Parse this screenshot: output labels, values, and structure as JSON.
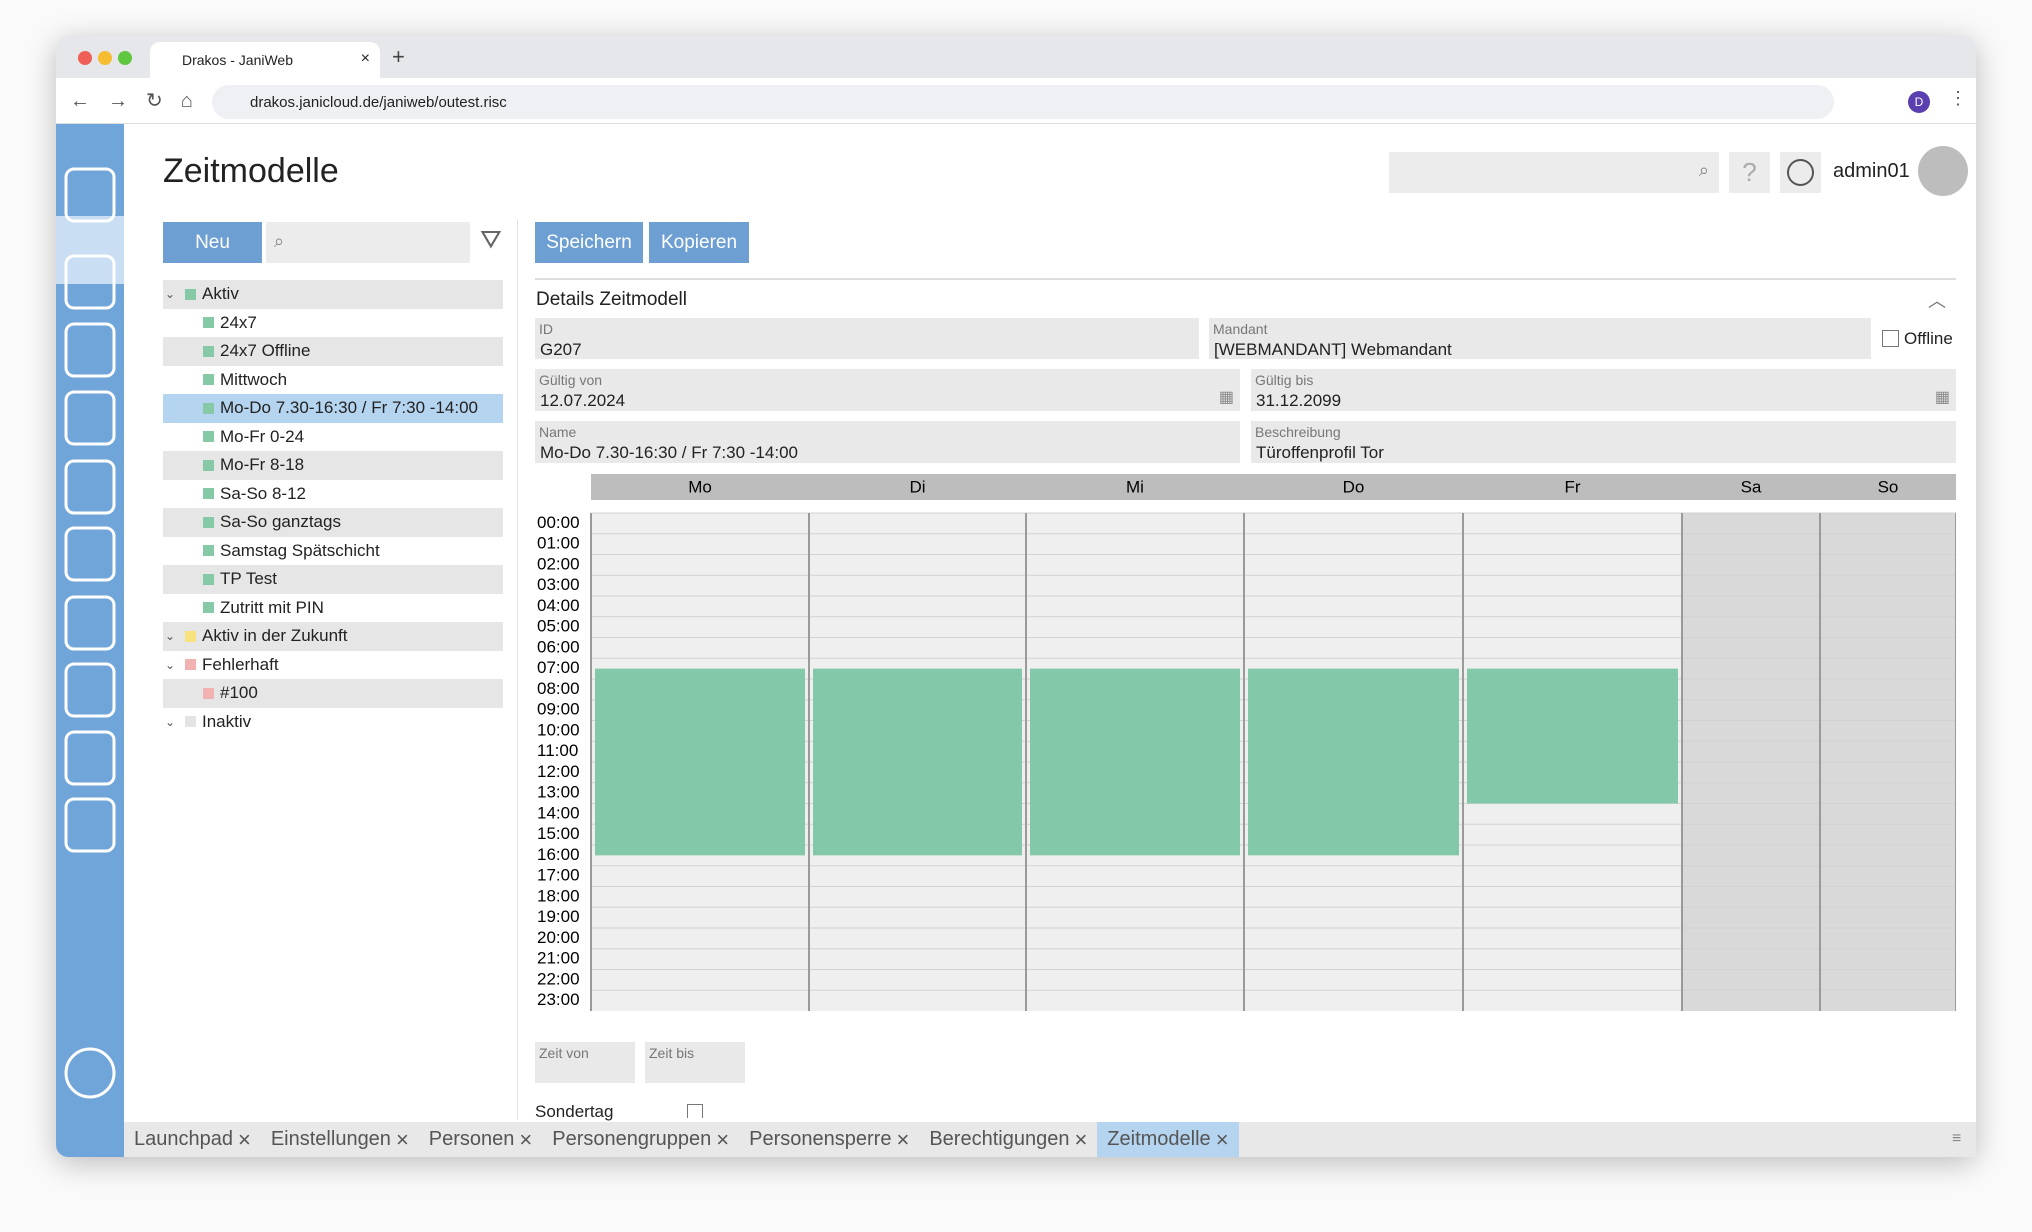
{
  "browser": {
    "tab_title": "Drakos - JaniWeb",
    "url": "drakos.janicloud.de/janiweb/outest.risc",
    "profile": "D"
  },
  "header": {
    "title": "Zeitmodelle",
    "user": "admin01"
  },
  "toolbar": {
    "new": "Neu",
    "save": "Speichern",
    "copy": "Kopieren"
  },
  "tree": [
    {
      "label": "Aktiv",
      "color": "#86c9a7",
      "items": [
        "24x7",
        "24x7 Offline",
        "Mittwoch",
        "Mo-Do 7.30-16:30 / Fr 7:30 -14:00",
        "Mo-Fr 0-24",
        "Mo-Fr 8-18",
        "Sa-So 8-12",
        "Sa-So ganztags",
        "Samstag Spätschicht",
        "TP Test",
        "Zutritt mit PIN"
      ]
    },
    {
      "label": "Aktiv in der Zukunft",
      "color": "#f7e27e",
      "items": []
    },
    {
      "label": "Fehlerhaft",
      "color": "#f2b2b2",
      "items": [
        "#100"
      ]
    },
    {
      "label": "Inaktiv",
      "color": "#e4e4e4",
      "items": []
    }
  ],
  "selected": "Mo-Do 7.30-16:30 / Fr 7:30 -14:00",
  "details": {
    "title": "Details Zeitmodell",
    "id": {
      "label": "ID",
      "value": "G207"
    },
    "mandant": {
      "label": "Mandant",
      "value": "[WEBMANDANT] Webmandant"
    },
    "offline": "Offline",
    "valid_from": {
      "label": "Gültig von",
      "value": "12.07.2024"
    },
    "valid_to": {
      "label": "Gültig bis",
      "value": "31.12.2099"
    },
    "name": {
      "label": "Name",
      "value": "Mo-Do 7.30-16:30 / Fr 7:30 -14:00"
    },
    "description": {
      "label": "Beschreibung",
      "value": "Türoffenprofil Tor"
    },
    "time_from": "Zeit von",
    "time_to": "Zeit bis",
    "special_day": "Sondertag"
  },
  "calendar": {
    "hours": [
      "00:00",
      "01:00",
      "02:00",
      "03:00",
      "04:00",
      "05:00",
      "06:00",
      "07:00",
      "08:00",
      "09:00",
      "10:00",
      "11:00",
      "12:00",
      "13:00",
      "14:00",
      "15:00",
      "16:00",
      "17:00",
      "18:00",
      "19:00",
      "20:00",
      "21:00",
      "22:00",
      "23:00"
    ],
    "block_color": "#83c9a9",
    "days": [
      {
        "label": "Mo",
        "weekend": false,
        "blocks": [
          {
            "from": 7.5,
            "to": 16.5
          }
        ]
      },
      {
        "label": "Di",
        "weekend": false,
        "blocks": [
          {
            "from": 7.5,
            "to": 16.5
          }
        ]
      },
      {
        "label": "Mi",
        "weekend": false,
        "blocks": [
          {
            "from": 7.5,
            "to": 16.5
          }
        ]
      },
      {
        "label": "Do",
        "weekend": false,
        "blocks": [
          {
            "from": 7.5,
            "to": 16.5
          }
        ]
      },
      {
        "label": "Fr",
        "weekend": false,
        "blocks": [
          {
            "from": 7.5,
            "to": 14
          }
        ]
      },
      {
        "label": "Sa",
        "weekend": true,
        "blocks": []
      },
      {
        "label": "So",
        "weekend": true,
        "blocks": []
      }
    ]
  },
  "tabs": [
    "Launchpad",
    "Einstellungen",
    "Personen",
    "Personengruppen",
    "Personensperre",
    "Berechtigungen",
    "Zeitmodelle"
  ],
  "active_tab": "Zeitmodelle"
}
